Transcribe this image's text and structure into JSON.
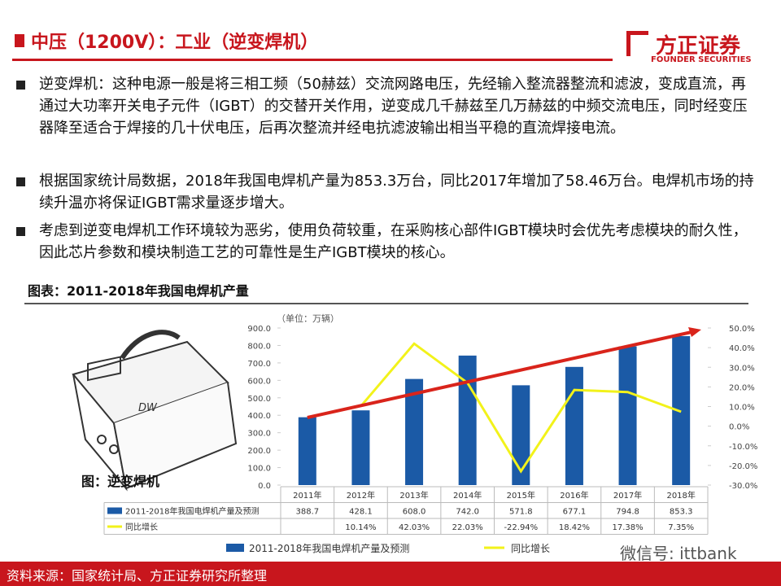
{
  "header": {
    "title": "中压（1200V）：工业（逆变焊机）",
    "logo": "方正证券",
    "logo_sub": "FOUNDER SECURITIES"
  },
  "bullets": [
    "逆变焊机：这种电源一般是将三相工频（50赫兹）交流网路电压，先经输入整流器整流和滤波，变成直流，再通过大功率开关电子元件（IGBT）的交替开关作用，逆变成几千赫兹至几万赫兹的中频交流电压，同时经变压器降至适合于焊接的几十伏电压，后再次整流并经电抗滤波输出相当平稳的直流焊接电流。",
    "根据国家统计局数据，2018年我国电焊机产量为853.3万台，同比2017年增加了58.46万台。电焊机市场的持续升温亦将保证IGBT需求量逐步增大。",
    "考虑到逆变电焊机工作环境较为恶劣，使用负荷较重，在采购核心部件IGBT模块时会优先考虑模块的耐久性，因此芯片参数和模块制造工艺的可靠性是生产IGBT模块的核心。"
  ],
  "figure_caption": "图：逆变焊机",
  "chart_data": {
    "type": "bar",
    "title": "图表：2011-2018年我国电焊机产量",
    "unit_label": "（单位：万辆）",
    "categories": [
      "2011年",
      "2012年",
      "2013年",
      "2014年",
      "2015年",
      "2016年",
      "2017年",
      "2018年"
    ],
    "series": [
      {
        "name": "2011-2018年我国电焊机产量及预测",
        "color": "#1b5aa6",
        "values": [
          388.7,
          428.1,
          608.0,
          742.0,
          571.8,
          677.1,
          794.8,
          853.3
        ],
        "value_labels": [
          "388.7",
          "428.1",
          "608.0",
          "742.0",
          "571.8",
          "677.1",
          "794.8",
          "853.3"
        ]
      },
      {
        "name": "同比增长",
        "color": "#f2f21a",
        "type": "line",
        "axis": "y2",
        "values": [
          null,
          10.14,
          42.03,
          22.03,
          -22.94,
          18.42,
          17.38,
          7.35
        ],
        "value_labels": [
          null,
          "10.14%",
          "42.03%",
          "22.03%",
          "-22.94%",
          "18.42%",
          "17.38%",
          "7.35%"
        ]
      }
    ],
    "ylim": [
      0,
      900
    ],
    "yticks": [
      {
        "value": 0,
        "label": "0.0"
      },
      {
        "value": 100,
        "label": "100.0"
      },
      {
        "value": 200,
        "label": "200.0"
      },
      {
        "value": 300,
        "label": "300.0"
      },
      {
        "value": 400,
        "label": "400.0"
      },
      {
        "value": 500,
        "label": "500.0"
      },
      {
        "value": 600,
        "label": "600.0"
      },
      {
        "value": 700,
        "label": "700.0"
      },
      {
        "value": 800,
        "label": "800.0"
      },
      {
        "value": 900,
        "label": "900.0"
      }
    ],
    "y2lim": [
      -30,
      50
    ],
    "y2ticks": [
      {
        "value": -30,
        "label": "-30.0%"
      },
      {
        "value": -20,
        "label": "-20.0%"
      },
      {
        "value": -10,
        "label": "-10.0%"
      },
      {
        "value": 0,
        "label": "0.0%"
      },
      {
        "value": 10,
        "label": "10.0%"
      },
      {
        "value": 20,
        "label": "20.0%"
      },
      {
        "value": 30,
        "label": "30.0%"
      },
      {
        "value": 40,
        "label": "40.0%"
      },
      {
        "value": 50,
        "label": "50.0%"
      }
    ],
    "grid": false
  },
  "footer": {
    "source": "资料来源：国家统计局、方正证券研究所整理",
    "wechat": "微信号: ittbank"
  }
}
